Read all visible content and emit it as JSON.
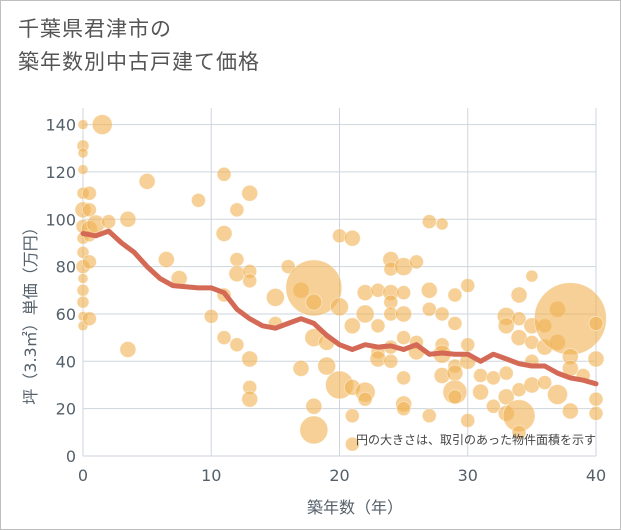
{
  "title_line1": "千葉県君津市の",
  "title_line2": "築年数別中古戸建て価格",
  "chart_data": {
    "type": "scatter",
    "xlabel": "築年数（年）",
    "ylabel": "坪（3.3㎡）単価（万円）",
    "xlim": [
      0,
      40
    ],
    "ylim": [
      0,
      147
    ],
    "xticks": [
      0,
      10,
      20,
      30,
      40
    ],
    "yticks": [
      0,
      20,
      40,
      60,
      80,
      100,
      120,
      140
    ],
    "grid": true,
    "note": "円の大きさは、取引のあった物件面積を示す",
    "colors": {
      "bubble": "#f0b050",
      "trend": "#d46a55",
      "grid": "#cdd6dd",
      "axis_text": "#55606a"
    },
    "points": [
      {
        "x": 0,
        "y": 140,
        "s": 5
      },
      {
        "x": 0,
        "y": 131,
        "s": 6
      },
      {
        "x": 0,
        "y": 128,
        "s": 5
      },
      {
        "x": 0,
        "y": 121,
        "s": 5
      },
      {
        "x": 0,
        "y": 111,
        "s": 6
      },
      {
        "x": 0,
        "y": 104,
        "s": 8
      },
      {
        "x": 0,
        "y": 97,
        "s": 7
      },
      {
        "x": 0,
        "y": 92,
        "s": 6
      },
      {
        "x": 0,
        "y": 86,
        "s": 6
      },
      {
        "x": 0,
        "y": 80,
        "s": 7
      },
      {
        "x": 0,
        "y": 75,
        "s": 5
      },
      {
        "x": 0,
        "y": 70,
        "s": 6
      },
      {
        "x": 0,
        "y": 65,
        "s": 6
      },
      {
        "x": 0,
        "y": 59,
        "s": 5
      },
      {
        "x": 0,
        "y": 55,
        "s": 5
      },
      {
        "x": 0.5,
        "y": 111,
        "s": 7
      },
      {
        "x": 0.5,
        "y": 104,
        "s": 7
      },
      {
        "x": 0.5,
        "y": 96,
        "s": 8
      },
      {
        "x": 0.5,
        "y": 93,
        "s": 6
      },
      {
        "x": 0.5,
        "y": 82,
        "s": 7
      },
      {
        "x": 0.5,
        "y": 58,
        "s": 7
      },
      {
        "x": 1,
        "y": 98,
        "s": 9
      },
      {
        "x": 1.5,
        "y": 140,
        "s": 10
      },
      {
        "x": 2,
        "y": 99,
        "s": 7
      },
      {
        "x": 3.5,
        "y": 100,
        "s": 8
      },
      {
        "x": 3.5,
        "y": 45,
        "s": 8
      },
      {
        "x": 5,
        "y": 116,
        "s": 8
      },
      {
        "x": 6.5,
        "y": 83,
        "s": 8
      },
      {
        "x": 7.5,
        "y": 75,
        "s": 8
      },
      {
        "x": 9,
        "y": 108,
        "s": 7
      },
      {
        "x": 10,
        "y": 59,
        "s": 7
      },
      {
        "x": 11,
        "y": 119,
        "s": 7
      },
      {
        "x": 11,
        "y": 94,
        "s": 8
      },
      {
        "x": 11,
        "y": 68,
        "s": 7
      },
      {
        "x": 11,
        "y": 50,
        "s": 7
      },
      {
        "x": 12,
        "y": 104,
        "s": 7
      },
      {
        "x": 12,
        "y": 83,
        "s": 7
      },
      {
        "x": 12,
        "y": 77,
        "s": 8
      },
      {
        "x": 12,
        "y": 47,
        "s": 7
      },
      {
        "x": 13,
        "y": 111,
        "s": 8
      },
      {
        "x": 13,
        "y": 78,
        "s": 7
      },
      {
        "x": 13,
        "y": 74,
        "s": 7
      },
      {
        "x": 13,
        "y": 41,
        "s": 8
      },
      {
        "x": 13,
        "y": 29,
        "s": 7
      },
      {
        "x": 13,
        "y": 24,
        "s": 8
      },
      {
        "x": 15,
        "y": 67,
        "s": 9
      },
      {
        "x": 15,
        "y": 56,
        "s": 7
      },
      {
        "x": 16,
        "y": 80,
        "s": 7
      },
      {
        "x": 17,
        "y": 70,
        "s": 8
      },
      {
        "x": 17,
        "y": 37,
        "s": 8
      },
      {
        "x": 18,
        "y": 71,
        "s": 28
      },
      {
        "x": 18,
        "y": 65,
        "s": 8
      },
      {
        "x": 18,
        "y": 50,
        "s": 9
      },
      {
        "x": 18,
        "y": 21,
        "s": 8
      },
      {
        "x": 18,
        "y": 11,
        "s": 14
      },
      {
        "x": 19,
        "y": 48,
        "s": 8
      },
      {
        "x": 19,
        "y": 38,
        "s": 9
      },
      {
        "x": 20,
        "y": 93,
        "s": 7
      },
      {
        "x": 20,
        "y": 63,
        "s": 9
      },
      {
        "x": 20,
        "y": 30,
        "s": 14
      },
      {
        "x": 21,
        "y": 92,
        "s": 8
      },
      {
        "x": 21,
        "y": 55,
        "s": 8
      },
      {
        "x": 21,
        "y": 29,
        "s": 8
      },
      {
        "x": 21,
        "y": 17,
        "s": 7
      },
      {
        "x": 21,
        "y": 5,
        "s": 7
      },
      {
        "x": 22,
        "y": 69,
        "s": 8
      },
      {
        "x": 22,
        "y": 60,
        "s": 9
      },
      {
        "x": 22,
        "y": 27,
        "s": 10
      },
      {
        "x": 22,
        "y": 24,
        "s": 7
      },
      {
        "x": 23,
        "y": 70,
        "s": 7
      },
      {
        "x": 23,
        "y": 55,
        "s": 7
      },
      {
        "x": 23,
        "y": 44,
        "s": 7
      },
      {
        "x": 23,
        "y": 41,
        "s": 8
      },
      {
        "x": 24,
        "y": 83,
        "s": 8
      },
      {
        "x": 24,
        "y": 79,
        "s": 7
      },
      {
        "x": 24,
        "y": 69,
        "s": 8
      },
      {
        "x": 24,
        "y": 65,
        "s": 7
      },
      {
        "x": 24,
        "y": 60,
        "s": 7
      },
      {
        "x": 24,
        "y": 46,
        "s": 7
      },
      {
        "x": 24,
        "y": 40,
        "s": 7
      },
      {
        "x": 25,
        "y": 80,
        "s": 9
      },
      {
        "x": 25,
        "y": 69,
        "s": 7
      },
      {
        "x": 25,
        "y": 60,
        "s": 8
      },
      {
        "x": 25,
        "y": 50,
        "s": 7
      },
      {
        "x": 25,
        "y": 33,
        "s": 7
      },
      {
        "x": 25,
        "y": 22,
        "s": 8
      },
      {
        "x": 25,
        "y": 20,
        "s": 7
      },
      {
        "x": 26,
        "y": 82,
        "s": 7
      },
      {
        "x": 26,
        "y": 48,
        "s": 7
      },
      {
        "x": 26,
        "y": 44,
        "s": 8
      },
      {
        "x": 27,
        "y": 99,
        "s": 7
      },
      {
        "x": 27,
        "y": 70,
        "s": 8
      },
      {
        "x": 27,
        "y": 62,
        "s": 7
      },
      {
        "x": 27,
        "y": 17,
        "s": 7
      },
      {
        "x": 28,
        "y": 98,
        "s": 6
      },
      {
        "x": 28,
        "y": 60,
        "s": 7
      },
      {
        "x": 28,
        "y": 47,
        "s": 7
      },
      {
        "x": 28,
        "y": 43,
        "s": 9
      },
      {
        "x": 28,
        "y": 34,
        "s": 8
      },
      {
        "x": 29,
        "y": 68,
        "s": 7
      },
      {
        "x": 29,
        "y": 56,
        "s": 7
      },
      {
        "x": 29,
        "y": 38,
        "s": 7
      },
      {
        "x": 29,
        "y": 35,
        "s": 8
      },
      {
        "x": 29,
        "y": 27,
        "s": 12
      },
      {
        "x": 29,
        "y": 25,
        "s": 7
      },
      {
        "x": 30,
        "y": 72,
        "s": 7
      },
      {
        "x": 30,
        "y": 47,
        "s": 7
      },
      {
        "x": 30,
        "y": 40,
        "s": 8
      },
      {
        "x": 30,
        "y": 15,
        "s": 7
      },
      {
        "x": 31,
        "y": 34,
        "s": 7
      },
      {
        "x": 31,
        "y": 27,
        "s": 8
      },
      {
        "x": 32,
        "y": 33,
        "s": 7
      },
      {
        "x": 32,
        "y": 21,
        "s": 7
      },
      {
        "x": 33,
        "y": 59,
        "s": 9
      },
      {
        "x": 33,
        "y": 55,
        "s": 8
      },
      {
        "x": 33,
        "y": 35,
        "s": 7
      },
      {
        "x": 33,
        "y": 25,
        "s": 8
      },
      {
        "x": 33,
        "y": 18,
        "s": 8
      },
      {
        "x": 34,
        "y": 68,
        "s": 8
      },
      {
        "x": 34,
        "y": 58,
        "s": 7
      },
      {
        "x": 34,
        "y": 50,
        "s": 8
      },
      {
        "x": 34,
        "y": 28,
        "s": 7
      },
      {
        "x": 34,
        "y": 17,
        "s": 16
      },
      {
        "x": 34,
        "y": 10,
        "s": 7
      },
      {
        "x": 35,
        "y": 76,
        "s": 6
      },
      {
        "x": 35,
        "y": 55,
        "s": 8
      },
      {
        "x": 35,
        "y": 48,
        "s": 7
      },
      {
        "x": 35,
        "y": 40,
        "s": 7
      },
      {
        "x": 35,
        "y": 30,
        "s": 8
      },
      {
        "x": 36,
        "y": 55,
        "s": 7
      },
      {
        "x": 36,
        "y": 46,
        "s": 8
      },
      {
        "x": 36,
        "y": 31,
        "s": 7
      },
      {
        "x": 37,
        "y": 62,
        "s": 8
      },
      {
        "x": 37,
        "y": 48,
        "s": 8
      },
      {
        "x": 37,
        "y": 26,
        "s": 10
      },
      {
        "x": 38,
        "y": 58,
        "s": 36
      },
      {
        "x": 38,
        "y": 42,
        "s": 8
      },
      {
        "x": 38,
        "y": 37,
        "s": 8
      },
      {
        "x": 38,
        "y": 19,
        "s": 8
      },
      {
        "x": 39,
        "y": 34,
        "s": 7
      },
      {
        "x": 40,
        "y": 56,
        "s": 7
      },
      {
        "x": 40,
        "y": 41,
        "s": 8
      },
      {
        "x": 40,
        "y": 24,
        "s": 7
      },
      {
        "x": 40,
        "y": 18,
        "s": 7
      }
    ],
    "trend": {
      "x": [
        0,
        1,
        2,
        3,
        4,
        5,
        6,
        7,
        8,
        9,
        10,
        11,
        12,
        13,
        14,
        15,
        16,
        17,
        18,
        19,
        20,
        21,
        22,
        23,
        24,
        25,
        26,
        27,
        28,
        29,
        30,
        31,
        32,
        33,
        34,
        35,
        36,
        37,
        38,
        39,
        40
      ],
      "y": [
        94,
        93,
        95,
        90,
        86,
        80,
        75,
        72,
        71.5,
        71,
        71,
        69,
        62,
        58,
        55,
        54,
        56,
        58,
        56,
        51,
        47,
        45,
        47,
        46,
        46.5,
        45,
        47,
        43,
        43.5,
        43,
        43,
        40,
        43,
        41,
        39,
        38,
        38,
        35,
        33,
        32,
        30.5
      ]
    }
  }
}
